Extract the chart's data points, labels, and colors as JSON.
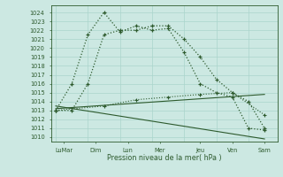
{
  "bg_color": "#cce8e2",
  "grid_color": "#aad4cc",
  "line_color": "#2d5a2d",
  "xlabel": "Pression niveau de la mer( hPa )",
  "ylim": [
    1009.5,
    1024.8
  ],
  "yticks": [
    1010,
    1011,
    1012,
    1013,
    1014,
    1015,
    1016,
    1017,
    1018,
    1019,
    1020,
    1021,
    1022,
    1023,
    1024
  ],
  "xlim": [
    -0.3,
    13.8
  ],
  "x_tick_pos": [
    0.5,
    2.5,
    4.5,
    6.5,
    9.0,
    11.0,
    13.0
  ],
  "x_tick_labels": [
    "LuMar",
    "Dim",
    "Lun",
    "Mer",
    "Jeu",
    "Ven",
    "Sam"
  ],
  "x_grid_pos": [
    0,
    2,
    4,
    6,
    8,
    10,
    12,
    14
  ],
  "series1_x": [
    0,
    1,
    2,
    3,
    4,
    5,
    6,
    7,
    8,
    9,
    10,
    11,
    12,
    13
  ],
  "series1_y": [
    1013.0,
    1016.0,
    1021.5,
    1024.0,
    1021.8,
    1022.5,
    1022.0,
    1022.2,
    1019.5,
    1016.0,
    1015.0,
    1014.5,
    1011.0,
    1010.8
  ],
  "series2_x": [
    0,
    1,
    2,
    3,
    4,
    5,
    6,
    7,
    8,
    9,
    10,
    11,
    12,
    13
  ],
  "series2_y": [
    1013.0,
    1013.0,
    1016.0,
    1021.5,
    1022.0,
    1022.0,
    1022.5,
    1022.5,
    1021.0,
    1019.0,
    1016.5,
    1015.0,
    1014.0,
    1011.0
  ],
  "series3_x": [
    0,
    13
  ],
  "series3_y": [
    1013.2,
    1014.8
  ],
  "series4_x": [
    0,
    13
  ],
  "series4_y": [
    1013.5,
    1009.8
  ],
  "series5_x": [
    0,
    3,
    5,
    7,
    9,
    11,
    13
  ],
  "series5_y": [
    1013.0,
    1013.5,
    1014.2,
    1014.5,
    1014.8,
    1015.0,
    1012.5
  ]
}
